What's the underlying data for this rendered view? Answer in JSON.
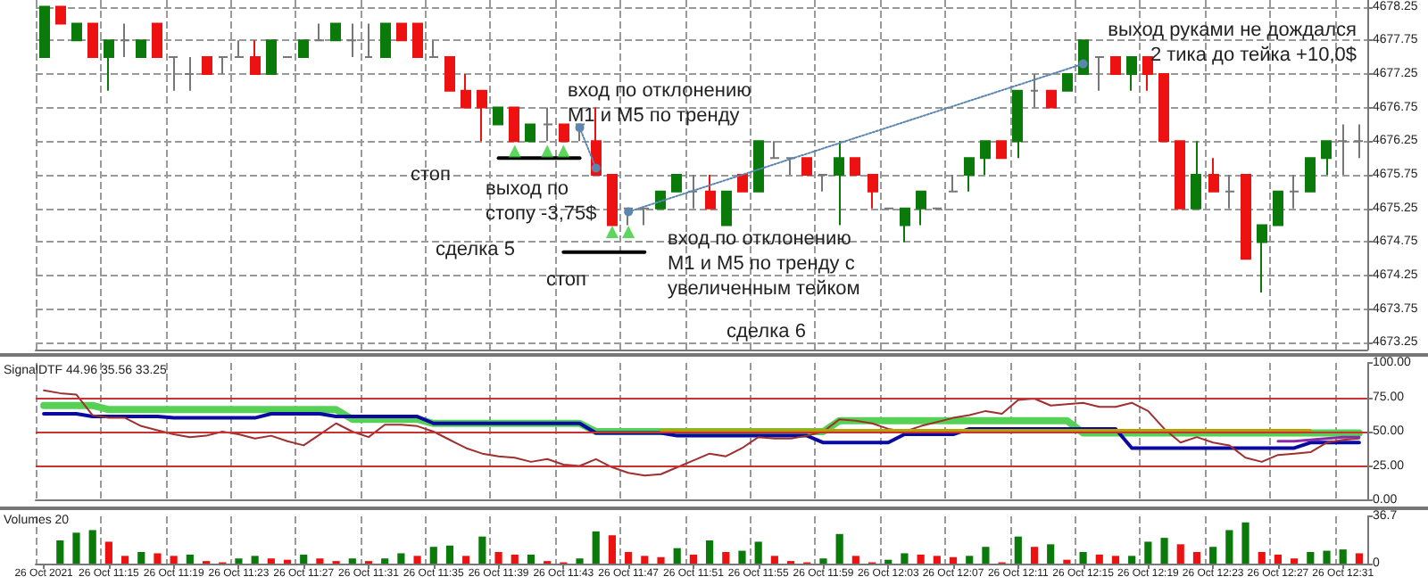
{
  "chart_data": [
    {
      "type": "candlestick",
      "categories": [
        null,
        null,
        null,
        null,
        null,
        null,
        null,
        null,
        null,
        null,
        null,
        null,
        null,
        null,
        null,
        null,
        null,
        null,
        null,
        null,
        null,
        null,
        null,
        null,
        null,
        null,
        null,
        null,
        null,
        null,
        null,
        null,
        null,
        null,
        null,
        null,
        null,
        null,
        null,
        null,
        null,
        null,
        null,
        null,
        null,
        null,
        null,
        null,
        null,
        null,
        null,
        null,
        null,
        null,
        null,
        null,
        null,
        null,
        null,
        null,
        null,
        null,
        null,
        null,
        null,
        null,
        null,
        null,
        null,
        null,
        null,
        null,
        null,
        null,
        null,
        null,
        null,
        null,
        null,
        null,
        null,
        null
      ],
      "ohlc": [
        [
          4677.5,
          4678.25,
          4677.5,
          4678.25
        ],
        [
          4678.25,
          4678.25,
          4678.0,
          4678.0
        ],
        [
          4677.75,
          4678.0,
          4677.75,
          4678.0
        ],
        [
          4678.0,
          4678.0,
          4677.5,
          4677.5
        ],
        [
          4677.5,
          4677.75,
          4677.0,
          4677.75
        ],
        [
          4677.75,
          4678.0,
          4677.5,
          4677.75
        ],
        [
          4677.5,
          4677.75,
          4677.5,
          4677.75
        ],
        [
          4678.0,
          4678.0,
          4677.5,
          4677.5
        ],
        [
          4677.5,
          4677.5,
          4677.0,
          4677.5
        ],
        [
          4677.25,
          4677.5,
          4677.0,
          4677.25
        ],
        [
          4677.5,
          4677.5,
          4677.25,
          4677.25
        ],
        [
          4677.5,
          4677.5,
          4677.25,
          4677.5
        ],
        [
          4677.5,
          4677.75,
          4677.5,
          4677.5
        ],
        [
          4677.5,
          4677.75,
          4677.25,
          4677.25
        ],
        [
          4677.25,
          4677.75,
          4677.25,
          4677.75
        ],
        [
          4677.5,
          4677.5,
          4677.5,
          4677.5
        ],
        [
          4677.5,
          4677.75,
          4677.5,
          4677.75
        ],
        [
          4677.75,
          4678.0,
          4677.75,
          4677.75
        ],
        [
          4677.75,
          4678.0,
          4677.75,
          4678.0
        ],
        [
          4677.75,
          4678.0,
          4677.5,
          4677.75
        ],
        [
          4677.5,
          4678.0,
          4677.5,
          4677.5
        ],
        [
          4677.5,
          4678.0,
          4677.5,
          4678.0
        ],
        [
          4678.0,
          4678.0,
          4677.75,
          4677.75
        ],
        [
          4678.0,
          4678.0,
          4677.5,
          4677.5
        ],
        [
          4677.5,
          4677.75,
          4677.5,
          4677.5
        ],
        [
          4677.5,
          4677.5,
          4677.0,
          4677.0
        ],
        [
          4677.0,
          4677.25,
          4676.75,
          4676.75
        ],
        [
          4677.0,
          4677.0,
          4676.25,
          4676.75
        ],
        [
          4676.5,
          4676.75,
          4676.5,
          4676.75
        ],
        [
          4676.75,
          4676.75,
          4676.25,
          4676.25
        ],
        [
          4676.25,
          4676.5,
          4676.25,
          4676.5
        ],
        [
          4676.5,
          4676.75,
          4676.25,
          4676.5
        ],
        [
          4676.5,
          4676.5,
          4676.25,
          4676.25
        ],
        [
          4676.5,
          4676.5,
          4676.25,
          4676.5
        ],
        [
          4676.25,
          4676.75,
          4675.75,
          4675.75
        ],
        [
          4675.75,
          4675.75,
          4675.0,
          4675.0
        ],
        [
          4675.25,
          4675.25,
          4675.0,
          4675.25
        ],
        [
          4675.25,
          4675.25,
          4675.0,
          4675.25
        ],
        [
          4675.25,
          4675.5,
          4675.25,
          4675.5
        ],
        [
          4675.5,
          4675.75,
          4675.5,
          4675.75
        ],
        [
          4675.5,
          4675.75,
          4675.25,
          4675.5
        ],
        [
          4675.5,
          4675.75,
          4675.25,
          4675.25
        ],
        [
          4675.0,
          4675.5,
          4675.0,
          4675.5
        ],
        [
          4675.75,
          4675.75,
          4675.5,
          4675.5
        ],
        [
          4675.5,
          4676.25,
          4675.5,
          4676.25
        ],
        [
          4676.0,
          4676.25,
          4676.0,
          4676.0
        ],
        [
          4676.0,
          4676.0,
          4675.75,
          4676.0
        ],
        [
          4676.0,
          4676.0,
          4675.75,
          4675.75
        ],
        [
          4675.75,
          4675.75,
          4675.5,
          4675.75
        ],
        [
          4675.75,
          4676.25,
          4675.0,
          4676.0
        ],
        [
          4676.0,
          4676.0,
          4675.75,
          4675.75
        ],
        [
          4675.75,
          4675.75,
          4675.25,
          4675.5
        ],
        [
          4675.25,
          4675.25,
          4675.25,
          4675.25
        ],
        [
          4675.0,
          4675.25,
          4674.75,
          4675.25
        ],
        [
          4675.25,
          4675.5,
          4675.0,
          4675.5
        ],
        [
          4675.25,
          4675.25,
          4675.25,
          4675.25
        ],
        [
          4675.5,
          4675.75,
          4675.5,
          4675.5
        ],
        [
          4675.75,
          4676.0,
          4675.5,
          4676.0
        ],
        [
          4676.0,
          4676.25,
          4675.75,
          4676.25
        ],
        [
          4676.25,
          4676.25,
          4676.0,
          4676.0
        ],
        [
          4676.25,
          4677.0,
          4676.0,
          4677.0
        ],
        [
          4677.0,
          4677.25,
          4676.75,
          4677.0
        ],
        [
          4677.0,
          4677.0,
          4676.75,
          4676.75
        ],
        [
          4677.0,
          4677.25,
          4677.0,
          4677.25
        ],
        [
          4677.25,
          4677.75,
          4677.25,
          4677.75
        ],
        [
          4677.5,
          4677.5,
          4677.0,
          4677.5
        ],
        [
          4677.5,
          4677.5,
          4677.25,
          4677.25
        ],
        [
          4677.25,
          4677.5,
          4677.0,
          4677.5
        ],
        [
          4677.5,
          4677.5,
          4677.0,
          4677.25
        ],
        [
          4677.25,
          4677.25,
          4676.25,
          4676.25
        ],
        [
          4676.25,
          4676.25,
          4675.25,
          4675.25
        ],
        [
          4675.25,
          4676.25,
          4675.25,
          4675.75
        ],
        [
          4675.75,
          4676.0,
          4675.5,
          4675.5
        ],
        [
          4675.5,
          4675.75,
          4675.25,
          4675.5
        ],
        [
          4675.75,
          4675.75,
          4674.5,
          4674.5
        ],
        [
          4674.75,
          4675.0,
          4674.0,
          4675.0
        ],
        [
          4675.0,
          4675.5,
          4675.0,
          4675.5
        ],
        [
          4675.5,
          4675.75,
          4675.25,
          4675.5
        ],
        [
          4675.5,
          4676.0,
          4675.5,
          4676.0
        ],
        [
          4676.0,
          4676.25,
          4675.75,
          4676.25
        ],
        [
          4676.25,
          4676.5,
          4675.75,
          4676.25
        ],
        [
          4676.25,
          4676.5,
          4676.0,
          4676.25
        ]
      ],
      "colors": [
        "#0a7a0a",
        "#ee1111",
        "#0a7a0a",
        "#ee1111",
        "#0a7a0a",
        "#777777",
        "#0a7a0a",
        "#ee1111",
        "#777777",
        "#777777",
        "#ee1111",
        "#777777",
        "#777777",
        "#ee1111",
        "#0a7a0a",
        "#777777",
        "#0a7a0a",
        "#777777",
        "#0a7a0a",
        "#777777",
        "#777777",
        "#0a7a0a",
        "#ee1111",
        "#ee1111",
        "#777777",
        "#ee1111",
        "#ee1111",
        "#ee1111",
        "#0a7a0a",
        "#ee1111",
        "#0a7a0a",
        "#777777",
        "#ee1111",
        "#777777",
        "#ee1111",
        "#ee1111",
        "#777777",
        "#777777",
        "#0a7a0a",
        "#0a7a0a",
        "#777777",
        "#ee1111",
        "#0a7a0a",
        "#ee1111",
        "#0a7a0a",
        "#777777",
        "#777777",
        "#ee1111",
        "#777777",
        "#0a7a0a",
        "#ee1111",
        "#ee1111",
        "#777777",
        "#0a7a0a",
        "#0a7a0a",
        "#777777",
        "#777777",
        "#0a7a0a",
        "#0a7a0a",
        "#ee1111",
        "#0a7a0a",
        "#777777",
        "#ee1111",
        "#0a7a0a",
        "#0a7a0a",
        "#777777",
        "#ee1111",
        "#0a7a0a",
        "#ee1111",
        "#ee1111",
        "#ee1111",
        "#0a7a0a",
        "#ee1111",
        "#777777",
        "#ee1111",
        "#0a7a0a",
        "#0a7a0a",
        "#777777",
        "#0a7a0a",
        "#0a7a0a",
        "#777777",
        "#777777"
      ],
      "series": [
        {
          "type": "line",
          "color": "#000000",
          "values": [
            null,
            null,
            null,
            null,
            null,
            null,
            null,
            null,
            null,
            null,
            null,
            null,
            null,
            null,
            null,
            null,
            null,
            null,
            null,
            null,
            null,
            null,
            null,
            null,
            null,
            null,
            null,
            null,
            4676.0,
            4676.0,
            4676.0,
            4676.0,
            4676.0,
            4676.0,
            null,
            null,
            null,
            null,
            null,
            null,
            null,
            null,
            null,
            null,
            null,
            null,
            null,
            null,
            null,
            null,
            null,
            null,
            null,
            null,
            null,
            null,
            null,
            null,
            null,
            null,
            null,
            null,
            null,
            null,
            null,
            null,
            null,
            null,
            null,
            null,
            null,
            null,
            null,
            null,
            null,
            null,
            null,
            null,
            null,
            null,
            null,
            null
          ]
        },
        {
          "type": "line",
          "color": "#000000",
          "values": [
            null,
            null,
            null,
            null,
            null,
            null,
            null,
            null,
            null,
            null,
            null,
            null,
            null,
            null,
            null,
            null,
            null,
            null,
            null,
            null,
            null,
            null,
            null,
            null,
            null,
            null,
            null,
            null,
            null,
            null,
            null,
            null,
            4674.6,
            4674.6,
            4674.6,
            4674.6,
            4674.6,
            4674.6,
            null,
            null,
            null,
            null,
            null,
            null,
            null,
            null,
            null,
            null,
            null,
            null,
            null,
            null,
            null,
            null,
            null,
            null,
            null,
            null,
            null,
            null,
            null,
            null,
            null,
            null,
            null,
            null,
            null,
            null,
            null,
            null,
            null,
            null,
            null,
            null,
            null,
            null,
            null,
            null,
            null,
            null,
            null,
            null
          ]
        },
        {
          "type": "line",
          "color": "#5a86b0",
          "line_style": "dotted",
          "marker": "circle",
          "values": [
            null,
            null,
            null,
            null,
            null,
            null,
            null,
            null,
            null,
            null,
            null,
            null,
            null,
            null,
            null,
            null,
            null,
            null,
            null,
            null,
            null,
            null,
            null,
            null,
            null,
            null,
            null,
            null,
            null,
            null,
            null,
            null,
            null,
            4676.45,
            4675.85,
            null,
            null,
            null,
            null,
            null,
            null,
            null,
            null,
            null,
            null,
            null,
            null,
            null,
            null,
            null,
            null,
            null,
            null,
            null,
            null,
            null,
            null,
            null,
            null,
            null,
            null,
            null,
            null,
            null,
            null,
            null,
            null,
            null,
            null,
            null,
            null,
            null,
            null,
            null,
            null,
            null,
            null,
            null,
            null,
            null,
            null,
            null
          ]
        },
        {
          "type": "line",
          "color": "#5a86b0",
          "line_style": "dotted",
          "marker": "circle",
          "values": [
            null,
            null,
            null,
            null,
            null,
            null,
            null,
            null,
            null,
            null,
            null,
            null,
            null,
            null,
            null,
            null,
            null,
            null,
            null,
            null,
            null,
            null,
            null,
            null,
            null,
            null,
            null,
            null,
            null,
            null,
            null,
            null,
            null,
            null,
            null,
            null,
            4675.2,
            null,
            null,
            null,
            null,
            null,
            null,
            null,
            null,
            null,
            null,
            null,
            null,
            null,
            null,
            null,
            null,
            null,
            null,
            null,
            null,
            null,
            null,
            null,
            null,
            null,
            null,
            null,
            4677.4,
            null,
            null,
            null,
            null,
            null,
            null,
            null,
            null,
            null,
            null,
            null,
            null,
            null,
            null,
            null,
            null,
            null
          ]
        },
        {
          "type": "scatter",
          "color": "#33cc33",
          "marker": "triangle",
          "values": [
            null,
            null,
            null,
            null,
            null,
            null,
            null,
            null,
            null,
            null,
            null,
            null,
            null,
            null,
            null,
            null,
            null,
            null,
            null,
            null,
            null,
            null,
            null,
            null,
            null,
            null,
            null,
            null,
            null,
            4676.1,
            null,
            4676.1,
            4676.1,
            null,
            null,
            4674.9,
            4674.9,
            null,
            null,
            null,
            null,
            null,
            null,
            null,
            null,
            null,
            null,
            null,
            null,
            null,
            null,
            null,
            null,
            null,
            null,
            null,
            null,
            null,
            null,
            null,
            null,
            null,
            null,
            null,
            null,
            null,
            null,
            null,
            null,
            null,
            null,
            null,
            null,
            null,
            null,
            null,
            null,
            null,
            null,
            null,
            null,
            null
          ]
        }
      ],
      "ylim": [
        4673.15,
        4678.35
      ],
      "yticks": [
        4673.25,
        4673.75,
        4674.25,
        4674.75,
        4675.25,
        4675.75,
        4676.25,
        4676.75,
        4677.25,
        4677.75,
        4678.25
      ],
      "grid": true,
      "tick_labels": "y",
      "annotations": [
        "вход по отклонению\nM1 и M5 по тренду",
        "стоп",
        "выход по\nстопу -3,75$",
        "сделка 5",
        "стоп",
        "вход по отклонению\nM1 и M5 по тренду с\nувеличенным тейком",
        "сделка 6",
        "выход руками не дождался\n2 тика до тейка +10,0$"
      ]
    },
    {
      "type": "line",
      "categories": [
        null,
        null,
        null,
        null,
        null,
        null,
        null,
        null,
        null,
        null,
        null,
        null,
        null,
        null,
        null,
        null,
        null,
        null,
        null,
        null,
        null,
        null,
        null,
        null,
        null,
        null,
        null,
        null,
        null,
        null,
        null,
        null,
        null,
        null,
        null,
        null,
        null,
        null,
        null,
        null,
        null,
        null,
        null,
        null,
        null,
        null,
        null,
        null,
        null,
        null,
        null,
        null,
        null,
        null,
        null,
        null,
        null,
        null,
        null,
        null,
        null,
        null,
        null,
        null,
        null,
        null,
        null,
        null,
        null,
        null,
        null,
        null,
        null,
        null,
        null,
        null,
        null,
        null,
        null,
        null,
        null,
        null
      ],
      "series": [
        {
          "color": "#55d155",
          "values": [
            69,
            69,
            69,
            69,
            66,
            66,
            66,
            66,
            66,
            66,
            66,
            66,
            66,
            66,
            66,
            66,
            66,
            66,
            66,
            59,
            59,
            59,
            59,
            59,
            56,
            56,
            56,
            56,
            56,
            56,
            56,
            56,
            56,
            56,
            50,
            50,
            50,
            50,
            50,
            50,
            50,
            50,
            50,
            50,
            50,
            50,
            50,
            50,
            50,
            58,
            58,
            58,
            58,
            58,
            58,
            58,
            58,
            58,
            58,
            58,
            58,
            58,
            58,
            58,
            49,
            49,
            49,
            49,
            49,
            49,
            49,
            49,
            49,
            49,
            49,
            49,
            49,
            49,
            49,
            49,
            49,
            49
          ]
        },
        {
          "color": "#0a0aa0",
          "values": [
            63,
            63,
            63,
            61,
            61,
            61,
            61,
            61,
            60,
            60,
            60,
            60,
            60,
            60,
            63,
            63,
            63,
            63,
            61,
            61,
            61,
            61,
            61,
            61,
            56,
            56,
            56,
            56,
            56,
            56,
            56,
            56,
            56,
            56,
            49,
            49,
            49,
            49,
            49,
            47,
            47,
            47,
            47,
            47,
            47,
            47,
            47,
            47,
            42,
            42,
            42,
            42,
            42,
            48,
            48,
            48,
            48,
            52,
            52,
            52,
            52,
            52,
            52,
            52,
            52,
            52,
            52,
            38,
            38,
            38,
            38,
            38,
            38,
            38,
            38,
            38,
            38,
            38,
            42,
            42,
            42,
            42
          ]
        },
        {
          "color": "#a03030",
          "values": [
            80,
            78,
            77,
            62,
            60,
            60,
            54,
            51,
            48,
            46,
            47,
            50,
            48,
            45,
            47,
            43,
            40,
            48,
            56,
            50,
            46,
            55,
            55,
            54,
            50,
            44,
            38,
            34,
            32,
            31,
            28,
            30,
            26,
            25,
            30,
            24,
            20,
            18,
            19,
            24,
            29,
            34,
            32,
            38,
            46,
            45,
            45,
            47,
            50,
            59,
            58,
            56,
            52,
            50,
            54,
            57,
            60,
            62,
            65,
            63,
            73,
            74,
            69,
            70,
            71,
            68,
            68,
            71,
            65,
            52,
            42,
            46,
            42,
            40,
            31,
            28,
            33,
            34,
            35,
            42,
            44,
            45
          ]
        },
        {
          "color": "#b8a000",
          "values": [
            null,
            null,
            null,
            null,
            null,
            null,
            null,
            null,
            null,
            null,
            null,
            null,
            null,
            null,
            null,
            null,
            null,
            null,
            null,
            null,
            null,
            null,
            null,
            null,
            null,
            null,
            null,
            null,
            null,
            null,
            null,
            null,
            null,
            null,
            null,
            null,
            null,
            null,
            51,
            51,
            51,
            51,
            51,
            51,
            51,
            51,
            51,
            51,
            51,
            51,
            51,
            51,
            51,
            51,
            51,
            51,
            51,
            51,
            51,
            51,
            51,
            51,
            51,
            51,
            51,
            51,
            51,
            51,
            51,
            51,
            51,
            51,
            51,
            51,
            51,
            51,
            51,
            51,
            51,
            null,
            null,
            null
          ]
        },
        {
          "color": "#8a2aa8",
          "values": [
            null,
            null,
            null,
            null,
            null,
            null,
            null,
            null,
            null,
            null,
            null,
            null,
            null,
            null,
            null,
            null,
            null,
            null,
            null,
            null,
            null,
            null,
            null,
            null,
            null,
            null,
            null,
            null,
            null,
            null,
            null,
            null,
            null,
            null,
            null,
            null,
            null,
            null,
            null,
            null,
            null,
            null,
            null,
            null,
            null,
            null,
            null,
            null,
            null,
            null,
            null,
            null,
            null,
            null,
            null,
            null,
            null,
            null,
            null,
            null,
            null,
            null,
            null,
            null,
            null,
            null,
            null,
            null,
            null,
            null,
            null,
            null,
            null,
            null,
            null,
            null,
            43,
            43,
            44,
            45,
            46,
            46
          ]
        }
      ],
      "ylim": [
        0,
        100
      ],
      "yticks": [
        {
          "value": 0,
          "label": "0.00"
        },
        {
          "value": 25,
          "label": "25.00"
        },
        {
          "value": 50,
          "label": "50.00"
        },
        {
          "value": 75,
          "label": "75.00"
        },
        {
          "value": 100,
          "label": "100.00"
        }
      ],
      "ref_lines": [
        {
          "axis": "y",
          "value": 75,
          "color": "#c83232"
        },
        {
          "axis": "y",
          "value": 50,
          "color": "#c83232"
        },
        {
          "axis": "y",
          "value": 25,
          "color": "#c83232"
        }
      ],
      "grid": "x",
      "tick_labels": "y",
      "annotations": [
        "SignalDTF 44.96 35.56 33.25"
      ]
    },
    {
      "type": "bar",
      "categories": [
        "26 Oct 2021",
        null,
        null,
        null,
        "26 Oct 11:15",
        null,
        null,
        null,
        "26 Oct 11:19",
        null,
        null,
        null,
        "26 Oct 11:23",
        null,
        null,
        null,
        "26 Oct 11:27",
        null,
        null,
        null,
        "26 Oct 11:31",
        null,
        null,
        null,
        "26 Oct 11:35",
        null,
        null,
        null,
        "26 Oct 11:39",
        null,
        null,
        null,
        "26 Oct 11:43",
        null,
        null,
        null,
        "26 Oct 11:47",
        null,
        null,
        null,
        "26 Oct 11:51",
        null,
        null,
        null,
        "26 Oct 11:55",
        null,
        null,
        null,
        "26 Oct 11:59",
        null,
        null,
        null,
        "26 Oct 12:03",
        null,
        null,
        null,
        "26 Oct 12:07",
        null,
        null,
        null,
        "26 Oct 12:11",
        null,
        null,
        null,
        "26 Oct 12:15",
        null,
        null,
        null,
        "26 Oct 12:19",
        null,
        null,
        null,
        "26 Oct 12:23",
        null,
        null,
        null,
        "26 Oct 12:27",
        null,
        null,
        null,
        "26 Oct 12:31",
        null
      ],
      "values": [
        null,
        18,
        24,
        26,
        17,
        6,
        9,
        8,
        6,
        7,
        2,
        1,
        4,
        6,
        4,
        3,
        7,
        4,
        2,
        4,
        2,
        4,
        8,
        6,
        13,
        14,
        6,
        21,
        9,
        7,
        7,
        2,
        1,
        4,
        25,
        22,
        9,
        6,
        5,
        12,
        7,
        18,
        9,
        10,
        17,
        6,
        2,
        1,
        4,
        23,
        6,
        1,
        3,
        8,
        7,
        6,
        5,
        6,
        13,
        1,
        21,
        13,
        15,
        3,
        9,
        7,
        6,
        6,
        17,
        20,
        15,
        9,
        13,
        26,
        32,
        9,
        7,
        4,
        9,
        10,
        11,
        8
      ],
      "colors": [
        "#0a7a0a",
        "#0a7a0a",
        "#0a7a0a",
        "#0a7a0a",
        "#ee1111",
        "#ee1111",
        "#0a7a0a",
        "#ee1111",
        "#ee1111",
        "#0a7a0a",
        "#ee1111",
        "#ee1111",
        "#0a7a0a",
        "#0a7a0a",
        "#ee1111",
        "#ee1111",
        "#0a7a0a",
        "#ee1111",
        "#ee1111",
        "#0a7a0a",
        "#ee1111",
        "#0a7a0a",
        "#0a7a0a",
        "#ee1111",
        "#0a7a0a",
        "#0a7a0a",
        "#ee1111",
        "#0a7a0a",
        "#ee1111",
        "#ee1111",
        "#0a7a0a",
        "#ee1111",
        "#ee1111",
        "#0a7a0a",
        "#0a7a0a",
        "#ee1111",
        "#ee1111",
        "#ee1111",
        "#ee1111",
        "#0a7a0a",
        "#ee1111",
        "#0a7a0a",
        "#ee1111",
        "#0a7a0a",
        "#0a7a0a",
        "#ee1111",
        "#ee1111",
        "#ee1111",
        "#0a7a0a",
        "#0a7a0a",
        "#ee1111",
        "#ee1111",
        "#0a7a0a",
        "#0a7a0a",
        "#ee1111",
        "#ee1111",
        "#ee1111",
        "#0a7a0a",
        "#0a7a0a",
        "#ee1111",
        "#0a7a0a",
        "#ee1111",
        "#0a7a0a",
        "#ee1111",
        "#0a7a0a",
        "#ee1111",
        "#ee1111",
        "#0a7a0a",
        "#0a7a0a",
        "#0a7a0a",
        "#ee1111",
        "#ee1111",
        "#0a7a0a",
        "#0a7a0a",
        "#0a7a0a",
        "#ee1111",
        "#ee1111",
        "#ee1111",
        "#0a7a0a",
        "#0a7a0a",
        "#0a7a0a",
        "#ee1111"
      ],
      "ylim": [
        0,
        36.7
      ],
      "yticks": [
        0,
        36.7
      ],
      "grid": "x",
      "annotations": [
        "Volumes 20"
      ]
    }
  ]
}
